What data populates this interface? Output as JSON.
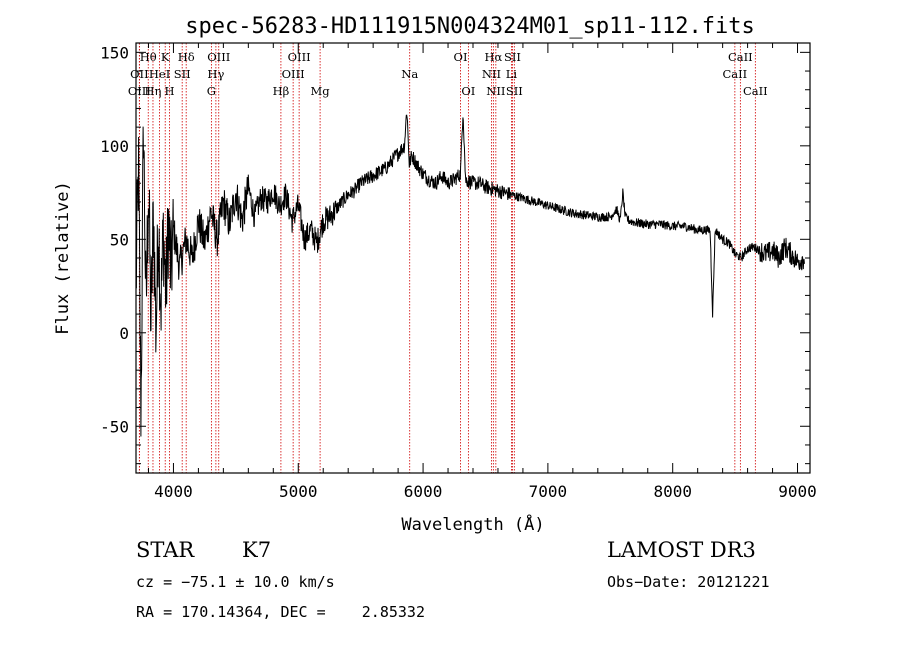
{
  "chart_data": {
    "type": "line",
    "title": "spec-56283-HD111915N004324M01_sp11-112.fits",
    "xlabel": "Wavelength (Å)",
    "ylabel": "Flux (relative)",
    "xlim": [
      3700,
      9100
    ],
    "ylim": [
      -75,
      155
    ],
    "xticks": [
      4000,
      5000,
      6000,
      7000,
      8000,
      9000
    ],
    "yticks": [
      -50,
      0,
      50,
      100,
      150
    ],
    "series": [
      {
        "name": "spectrum",
        "x": [
          3700,
          3720,
          3740,
          3760,
          3780,
          3800,
          3820,
          3840,
          3860,
          3880,
          3900,
          3920,
          3940,
          3960,
          3980,
          4000,
          4050,
          4100,
          4150,
          4200,
          4250,
          4300,
          4350,
          4400,
          4450,
          4500,
          4550,
          4600,
          4650,
          4700,
          4750,
          4800,
          4850,
          4900,
          4950,
          5000,
          5050,
          5100,
          5150,
          5200,
          5250,
          5300,
          5350,
          5400,
          5450,
          5500,
          5550,
          5600,
          5650,
          5700,
          5750,
          5800,
          5850,
          5870,
          5890,
          5910,
          5950,
          6000,
          6050,
          6100,
          6150,
          6200,
          6250,
          6300,
          6320,
          6340,
          6400,
          6450,
          6500,
          6550,
          6600,
          6650,
          6700,
          6750,
          6800,
          6900,
          7000,
          7100,
          7200,
          7300,
          7400,
          7500,
          7550,
          7580,
          7600,
          7620,
          7650,
          7700,
          7800,
          7900,
          8000,
          8100,
          8200,
          8300,
          8320,
          8340,
          8400,
          8450,
          8500,
          8550,
          8600,
          8650,
          8700,
          8750,
          8800,
          8850,
          8900,
          8950,
          9000,
          9050,
          9100
        ],
        "values": [
          25,
          90,
          -45,
          115,
          10,
          80,
          5,
          65,
          0,
          60,
          15,
          55,
          20,
          60,
          30,
          55,
          35,
          50,
          40,
          60,
          48,
          65,
          50,
          70,
          58,
          75,
          60,
          78,
          62,
          72,
          70,
          76,
          68,
          74,
          60,
          68,
          50,
          55,
          48,
          60,
          62,
          66,
          70,
          74,
          76,
          80,
          82,
          84,
          86,
          88,
          92,
          96,
          100,
          120,
          90,
          95,
          90,
          85,
          82,
          80,
          84,
          80,
          82,
          85,
          120,
          82,
          80,
          80,
          78,
          77,
          76,
          75,
          74,
          73,
          72,
          70,
          68,
          66,
          64,
          63,
          62,
          62,
          66,
          60,
          75,
          62,
          60,
          59,
          58,
          58,
          57,
          57,
          55,
          55,
          10,
          55,
          50,
          48,
          42,
          40,
          45,
          46,
          44,
          42,
          44,
          40,
          46,
          42,
          38,
          40,
          36
        ]
      }
    ],
    "spectral_lines": [
      {
        "name": "OII",
        "wavelength": 3727,
        "row": 2
      },
      {
        "name": "Hθ",
        "wavelength": 3798,
        "row": 1
      },
      {
        "name": "Hη",
        "wavelength": 3836,
        "row": 3
      },
      {
        "name": "OIII",
        "wavelength": 3727,
        "row": 3
      },
      {
        "name": "HeI",
        "wavelength": 3889,
        "row": 2
      },
      {
        "name": "K",
        "wavelength": 3934,
        "row": 1
      },
      {
        "name": "H",
        "wavelength": 3969,
        "row": 3
      },
      {
        "name": "SII",
        "wavelength": 4070,
        "row": 2
      },
      {
        "name": "Hδ",
        "wavelength": 4102,
        "row": 1
      },
      {
        "name": "G",
        "wavelength": 4304,
        "row": 3
      },
      {
        "name": "Hγ",
        "wavelength": 4340,
        "row": 2
      },
      {
        "name": "OIII",
        "wavelength": 4363,
        "row": 1
      },
      {
        "name": "Hβ",
        "wavelength": 4861,
        "row": 3
      },
      {
        "name": "OIII",
        "wavelength": 4959,
        "row": 2
      },
      {
        "name": "OIII",
        "wavelength": 5007,
        "row": 1
      },
      {
        "name": "Mg",
        "wavelength": 5175,
        "row": 3
      },
      {
        "name": "Na",
        "wavelength": 5893,
        "row": 2
      },
      {
        "name": "OI",
        "wavelength": 6300,
        "row": 1
      },
      {
        "name": "OI",
        "wavelength": 6363,
        "row": 3
      },
      {
        "name": "NII",
        "wavelength": 6548,
        "row": 2
      },
      {
        "name": "Hα",
        "wavelength": 6563,
        "row": 1
      },
      {
        "name": "NII",
        "wavelength": 6583,
        "row": 3
      },
      {
        "name": "Li",
        "wavelength": 6708,
        "row": 2
      },
      {
        "name": "SII",
        "wavelength": 6716,
        "row": 1
      },
      {
        "name": "SII",
        "wavelength": 6731,
        "row": 3
      },
      {
        "name": "CaII",
        "wavelength": 8498,
        "row": 2
      },
      {
        "name": "CaII",
        "wavelength": 8542,
        "row": 1
      },
      {
        "name": "CaII",
        "wavelength": 8662,
        "row": 3
      }
    ]
  },
  "info": {
    "class": "STAR",
    "subclass": "K7",
    "survey": "LAMOST DR3",
    "cz": "cz = −75.1 ± 10.0 km/s",
    "obs_date": "Obs−Date: 20121221",
    "radec": "RA = 170.14364, DEC =    2.85332"
  }
}
